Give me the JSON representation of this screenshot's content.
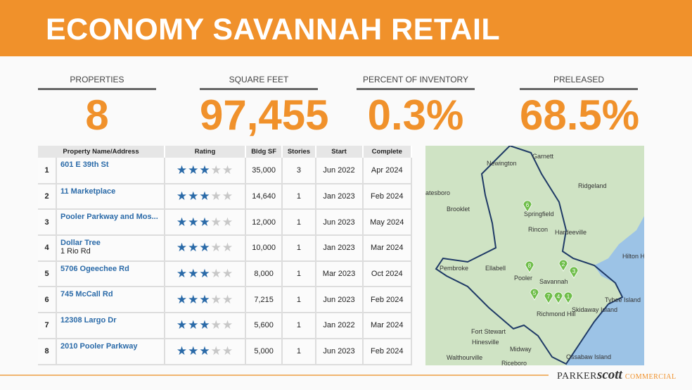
{
  "title": "ECONOMY SAVANNAH RETAIL",
  "kpis": [
    {
      "label": "PROPERTIES",
      "value": "8"
    },
    {
      "label": "SQUARE FEET",
      "value": "97,455"
    },
    {
      "label": "PERCENT OF INVENTORY",
      "value": "0.3%"
    },
    {
      "label": "PRELEASED",
      "value": "68.5%"
    }
  ],
  "table": {
    "headers": [
      "Property Name/Address",
      "Rating",
      "Bldg SF",
      "Stories",
      "Start",
      "Complete"
    ],
    "rows": [
      {
        "n": "1",
        "name": "601 E 39th St",
        "addr": "",
        "rating": 3,
        "sf": "35,000",
        "stories": "3",
        "start": "Jun 2022",
        "complete": "Apr 2024"
      },
      {
        "n": "2",
        "name": "11 Marketplace",
        "addr": "",
        "rating": 3,
        "sf": "14,640",
        "stories": "1",
        "start": "Jan 2023",
        "complete": "Feb 2024"
      },
      {
        "n": "3",
        "name": "Pooler Parkway and Mos...",
        "addr": "",
        "rating": 3,
        "sf": "12,000",
        "stories": "1",
        "start": "Jun 2023",
        "complete": "May 2024"
      },
      {
        "n": "4",
        "name": "Dollar Tree",
        "addr": "1 Rio Rd",
        "rating": 3,
        "sf": "10,000",
        "stories": "1",
        "start": "Jan 2023",
        "complete": "Mar 2024"
      },
      {
        "n": "5",
        "name": "5706 Ogeechee Rd",
        "addr": "",
        "rating": 3,
        "sf": "8,000",
        "stories": "1",
        "start": "Mar 2023",
        "complete": "Oct 2024"
      },
      {
        "n": "6",
        "name": "745 McCall Rd",
        "addr": "",
        "rating": 3,
        "sf": "7,215",
        "stories": "1",
        "start": "Jun 2023",
        "complete": "Feb 2024"
      },
      {
        "n": "7",
        "name": "12308 Largo Dr",
        "addr": "",
        "rating": 3,
        "sf": "5,600",
        "stories": "1",
        "start": "Jan 2022",
        "complete": "Mar 2024"
      },
      {
        "n": "8",
        "name": "2010 Pooler Parkway",
        "addr": "",
        "rating": 3,
        "sf": "5,000",
        "stories": "1",
        "start": "Jun 2023",
        "complete": "Feb 2024"
      }
    ]
  },
  "map": {
    "labels": [
      "Garnett",
      "Newington",
      "Ridgeland",
      "atesboro",
      "Brooklet",
      "Springfield",
      "Rincon",
      "Hardeeville",
      "Pembroke",
      "Ellabell",
      "Savannah",
      "Pooler",
      "Richmond Hill",
      "Skidaway Island",
      "Tybee Island",
      "Fort Stewart",
      "Hinesville",
      "Midway",
      "Walthourville",
      "Riceboro",
      "Hilton Head Is",
      "Ossabaw Island"
    ],
    "markers": [
      "1",
      "2",
      "3",
      "4",
      "5",
      "6",
      "7",
      "8"
    ],
    "colors": {
      "land": "#cfe3c4",
      "water": "#9cc3e6",
      "marker": "#6fbe4a",
      "boundary": "#1f3a66"
    }
  },
  "logo": {
    "a": "PARKER",
    "b": "scott",
    "c": "COMMERCIAL"
  },
  "colors": {
    "accent": "#f0912b",
    "link": "#2a6aa8"
  }
}
